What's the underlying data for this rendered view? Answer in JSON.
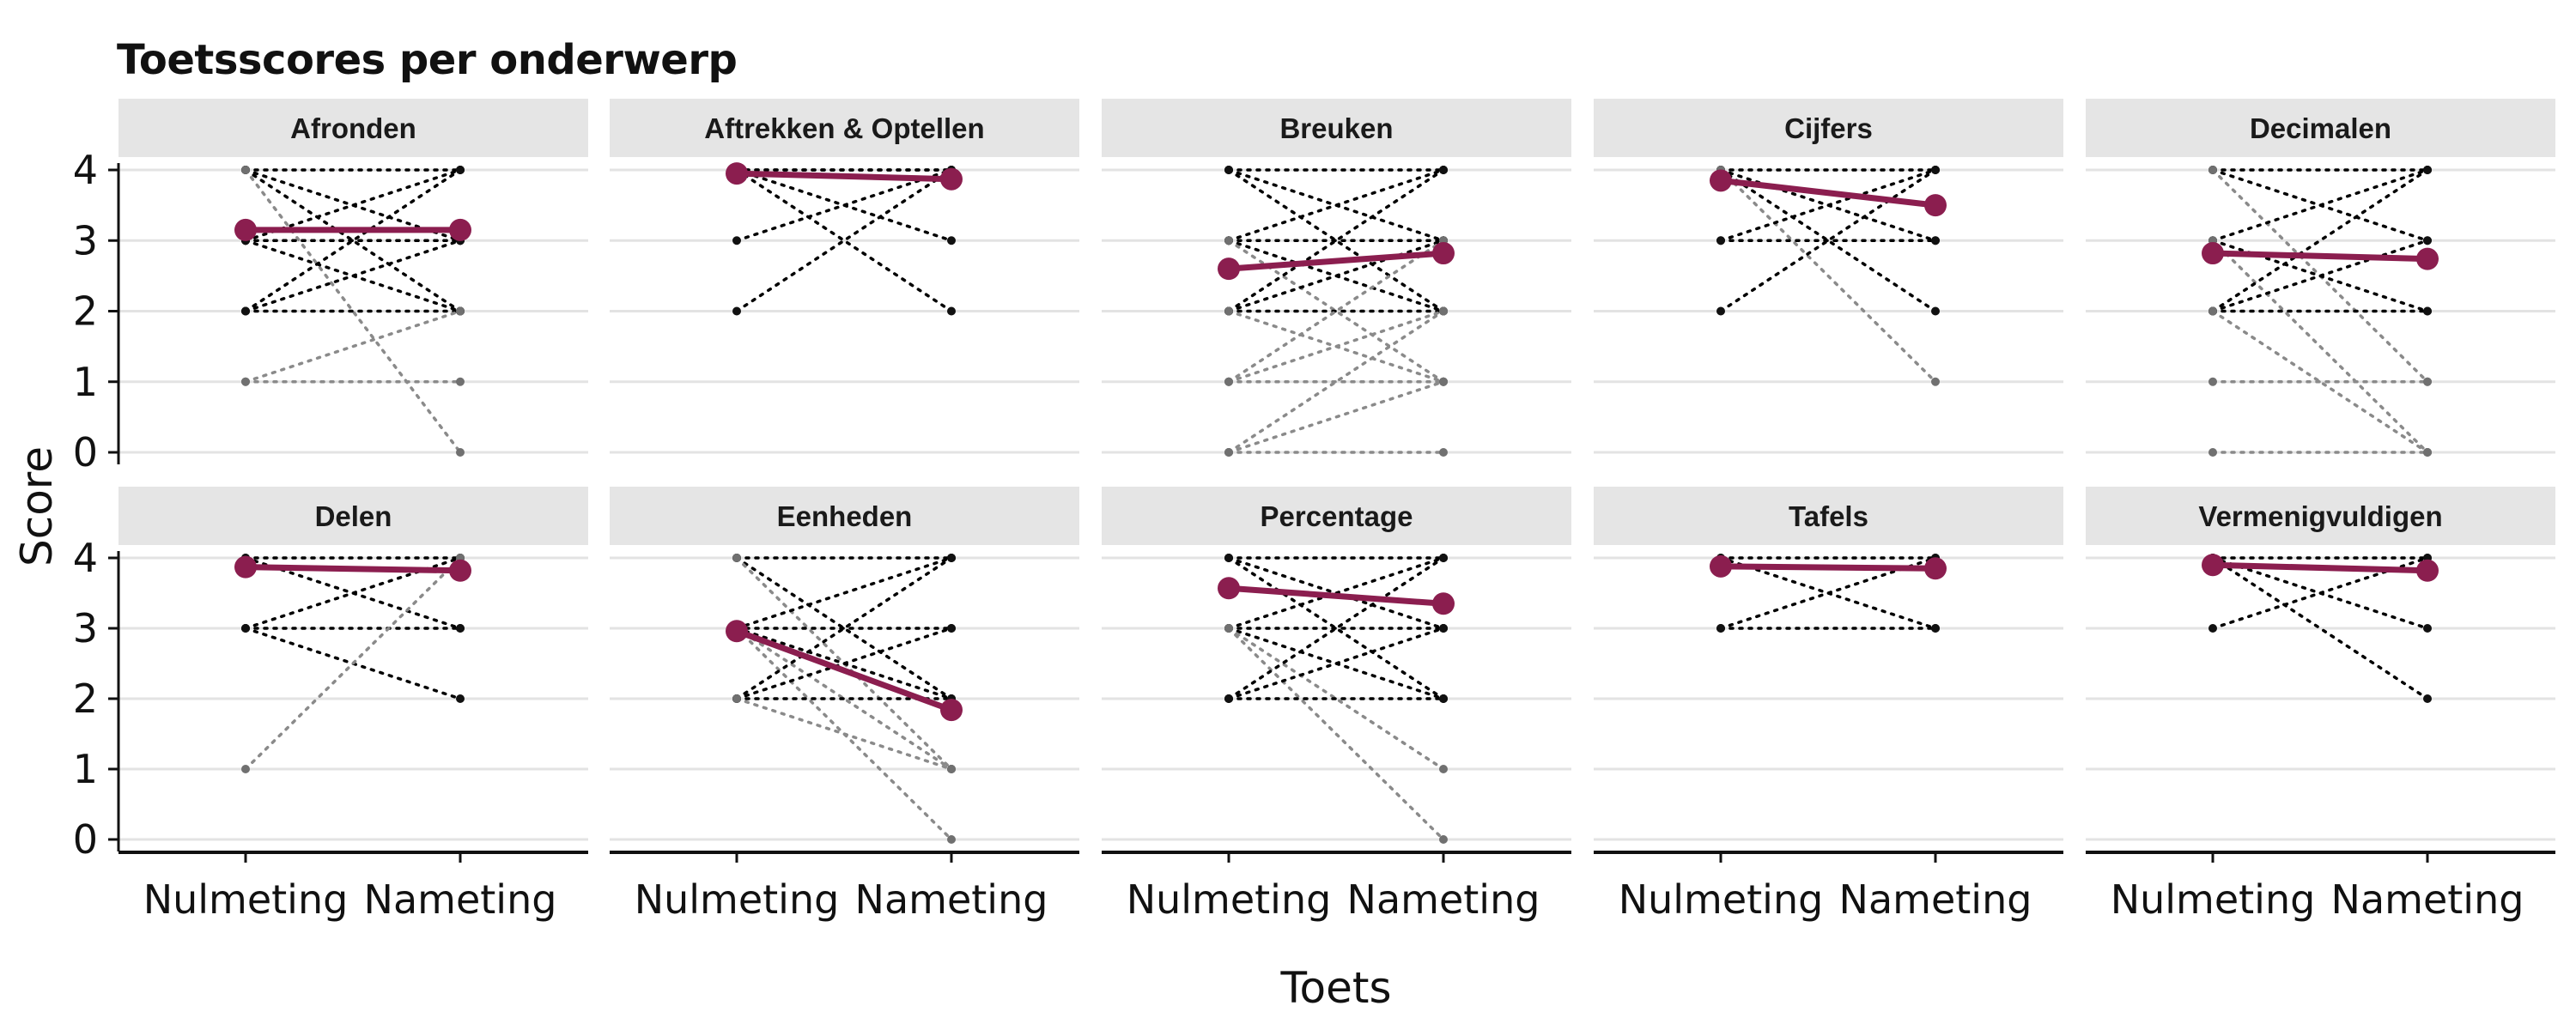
{
  "chart_data": {
    "type": "line",
    "title": "Toetsscores per onderwerp",
    "xlabel": "Toets",
    "ylabel": "Score",
    "x_categories": [
      "Nulmeting",
      "Nameting"
    ],
    "y_ticks": [
      0,
      1,
      2,
      3,
      4
    ],
    "ylim": [
      0,
      4
    ],
    "grid": true,
    "mean_line_color": "#8B1E4F",
    "individual_line_color": "#000000",
    "panels": [
      {
        "subject": "Afronden",
        "mean": [
          3.15,
          3.15
        ],
        "pairs": [
          [
            4,
            4
          ],
          [
            4,
            3
          ],
          [
            4,
            2
          ],
          [
            4,
            0
          ],
          [
            3,
            4
          ],
          [
            3,
            3
          ],
          [
            3,
            3
          ],
          [
            3,
            2
          ],
          [
            2,
            4
          ],
          [
            2,
            3
          ],
          [
            2,
            2
          ],
          [
            1,
            1
          ],
          [
            1,
            2
          ]
        ]
      },
      {
        "subject": "Aftrekken & Optellen",
        "mean": [
          3.95,
          3.87
        ],
        "pairs": [
          [
            4,
            4
          ],
          [
            4,
            4
          ],
          [
            4,
            3
          ],
          [
            4,
            2
          ],
          [
            3,
            4
          ],
          [
            2,
            4
          ]
        ]
      },
      {
        "subject": "Breuken",
        "mean": [
          2.6,
          2.82
        ],
        "pairs": [
          [
            4,
            4
          ],
          [
            4,
            3
          ],
          [
            4,
            2
          ],
          [
            3,
            4
          ],
          [
            3,
            3
          ],
          [
            3,
            2
          ],
          [
            3,
            1
          ],
          [
            2,
            4
          ],
          [
            2,
            3
          ],
          [
            2,
            2
          ],
          [
            2,
            1
          ],
          [
            1,
            3
          ],
          [
            1,
            2
          ],
          [
            1,
            1
          ],
          [
            0,
            2
          ],
          [
            0,
            1
          ],
          [
            0,
            0
          ]
        ]
      },
      {
        "subject": "Cijfers",
        "mean": [
          3.85,
          3.5
        ],
        "pairs": [
          [
            4,
            4
          ],
          [
            4,
            3
          ],
          [
            4,
            2
          ],
          [
            4,
            1
          ],
          [
            3,
            4
          ],
          [
            3,
            3
          ],
          [
            2,
            4
          ]
        ]
      },
      {
        "subject": "Decimalen",
        "mean": [
          2.82,
          2.74
        ],
        "pairs": [
          [
            4,
            4
          ],
          [
            4,
            3
          ],
          [
            4,
            1
          ],
          [
            3,
            4
          ],
          [
            3,
            2
          ],
          [
            3,
            0
          ],
          [
            2,
            4
          ],
          [
            2,
            3
          ],
          [
            2,
            2
          ],
          [
            2,
            0
          ],
          [
            1,
            1
          ],
          [
            0,
            0
          ]
        ]
      },
      {
        "subject": "Delen",
        "mean": [
          3.87,
          3.82
        ],
        "pairs": [
          [
            4,
            4
          ],
          [
            4,
            3
          ],
          [
            3,
            4
          ],
          [
            3,
            3
          ],
          [
            3,
            2
          ],
          [
            1,
            4
          ]
        ]
      },
      {
        "subject": "Eenheden",
        "mean": [
          2.96,
          1.84
        ],
        "pairs": [
          [
            4,
            4
          ],
          [
            4,
            2
          ],
          [
            4,
            1
          ],
          [
            3,
            4
          ],
          [
            3,
            3
          ],
          [
            3,
            2
          ],
          [
            3,
            1
          ],
          [
            3,
            0
          ],
          [
            2,
            4
          ],
          [
            2,
            3
          ],
          [
            2,
            2
          ],
          [
            2,
            1
          ]
        ]
      },
      {
        "subject": "Percentage",
        "mean": [
          3.57,
          3.35
        ],
        "pairs": [
          [
            4,
            4
          ],
          [
            4,
            3
          ],
          [
            4,
            2
          ],
          [
            3,
            4
          ],
          [
            3,
            3
          ],
          [
            3,
            2
          ],
          [
            3,
            1
          ],
          [
            3,
            0
          ],
          [
            2,
            4
          ],
          [
            2,
            3
          ],
          [
            2,
            2
          ]
        ]
      },
      {
        "subject": "Tafels",
        "mean": [
          3.88,
          3.85
        ],
        "pairs": [
          [
            4,
            4
          ],
          [
            4,
            3
          ],
          [
            3,
            4
          ],
          [
            3,
            3
          ]
        ]
      },
      {
        "subject": "Vermenigvuldigen",
        "mean": [
          3.9,
          3.82
        ],
        "pairs": [
          [
            4,
            4
          ],
          [
            4,
            3
          ],
          [
            4,
            2
          ],
          [
            3,
            4
          ]
        ]
      }
    ]
  }
}
